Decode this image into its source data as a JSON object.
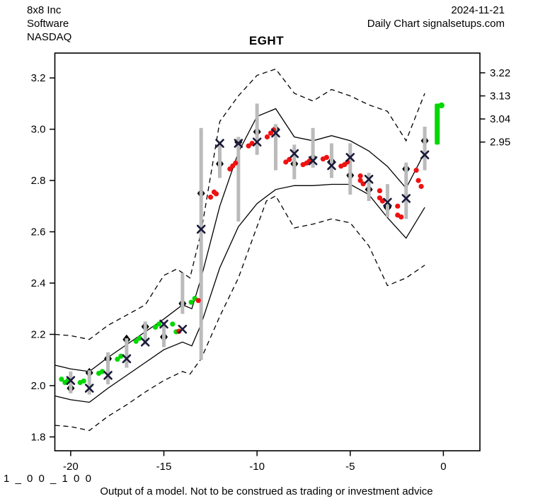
{
  "header": {
    "company": "8x8 Inc",
    "sector": "Software",
    "exchange": "NASDAQ",
    "date": "2024-11-21",
    "subtitle": "Daily Chart signalsetups.com"
  },
  "title": "EGHT",
  "footer": {
    "code": "1 _ 0 0 _ 1 0 0",
    "disclaimer": "Output of a model. Not to be construed as trading or investment advice"
  },
  "colors": {
    "green": "#00d800",
    "red": "#ee1111",
    "bar_gray": "#bbbbbb",
    "line_black": "#000000",
    "x_marker": "#1a1a3a"
  },
  "chart_data": {
    "type": "line",
    "title": "EGHT",
    "xlabel": "",
    "ylabel": "",
    "grid": false,
    "legend": "none",
    "xlim": [
      -20.85,
      1.96
    ],
    "ylim": [
      1.746,
      3.297
    ],
    "x_ticks": [
      -20,
      -15,
      -10,
      -5,
      0
    ],
    "y_ticks_left": [
      1.8,
      2.0,
      2.2,
      2.4,
      2.6,
      2.8,
      3.0,
      3.2
    ],
    "y_ticks_right": [
      3.22,
      3.13,
      3.04,
      2.95
    ],
    "bands": {
      "upper_dashed": [
        [
          -20.85,
          2.2
        ],
        [
          -20,
          2.195
        ],
        [
          -19,
          2.18
        ],
        [
          -18,
          2.235
        ],
        [
          -17,
          2.275
        ],
        [
          -16,
          2.315
        ],
        [
          -15,
          2.43
        ],
        [
          -14.3,
          2.455
        ],
        [
          -13.6,
          2.42
        ],
        [
          -13,
          2.6
        ],
        [
          -12,
          3.03
        ],
        [
          -11,
          3.13
        ],
        [
          -10,
          3.21
        ],
        [
          -9,
          3.235
        ],
        [
          -8,
          3.14
        ],
        [
          -7,
          3.11
        ],
        [
          -6,
          3.155
        ],
        [
          -5,
          3.13
        ],
        [
          -4,
          3.095
        ],
        [
          -3,
          3.07
        ],
        [
          -2,
          2.955
        ],
        [
          -1,
          3.14
        ]
      ],
      "upper_solid": [
        [
          -20.85,
          2.08
        ],
        [
          -20,
          2.065
        ],
        [
          -19,
          2.055
        ],
        [
          -18,
          2.11
        ],
        [
          -17,
          2.16
        ],
        [
          -16,
          2.21
        ],
        [
          -15,
          2.26
        ],
        [
          -14,
          2.315
        ],
        [
          -13.5,
          2.3
        ],
        [
          -13,
          2.42
        ],
        [
          -12,
          2.7
        ],
        [
          -11,
          2.91
        ],
        [
          -10,
          3.05
        ],
        [
          -9,
          3.08
        ],
        [
          -8,
          2.97
        ],
        [
          -7,
          2.955
        ],
        [
          -6,
          2.975
        ],
        [
          -5,
          2.955
        ],
        [
          -4,
          2.915
        ],
        [
          -3,
          2.855
        ],
        [
          -2,
          2.77
        ],
        [
          -1,
          2.91
        ]
      ],
      "lower_solid": [
        [
          -20.85,
          1.96
        ],
        [
          -20,
          1.945
        ],
        [
          -19,
          1.935
        ],
        [
          -18,
          1.99
        ],
        [
          -17,
          2.04
        ],
        [
          -16,
          2.09
        ],
        [
          -15,
          2.14
        ],
        [
          -14,
          2.17
        ],
        [
          -13.5,
          2.155
        ],
        [
          -13,
          2.24
        ],
        [
          -12,
          2.46
        ],
        [
          -11,
          2.62
        ],
        [
          -10,
          2.71
        ],
        [
          -9,
          2.765
        ],
        [
          -8,
          2.78
        ],
        [
          -7,
          2.78
        ],
        [
          -6,
          2.785
        ],
        [
          -5,
          2.785
        ],
        [
          -4,
          2.745
        ],
        [
          -3,
          2.655
        ],
        [
          -2,
          2.575
        ],
        [
          -1,
          2.695
        ]
      ],
      "lower_dashed": [
        [
          -20.85,
          1.845
        ],
        [
          -20,
          1.84
        ],
        [
          -19,
          1.825
        ],
        [
          -18,
          1.88
        ],
        [
          -17,
          1.925
        ],
        [
          -16,
          1.975
        ],
        [
          -15,
          2.02
        ],
        [
          -14,
          2.055
        ],
        [
          -13.6,
          2.045
        ],
        [
          -13,
          2.105
        ],
        [
          -12,
          2.27
        ],
        [
          -11,
          2.42
        ],
        [
          -10,
          2.62
        ],
        [
          -9.5,
          2.72
        ],
        [
          -9,
          2.74
        ],
        [
          -8,
          2.615
        ],
        [
          -7,
          2.63
        ],
        [
          -6,
          2.65
        ],
        [
          -5,
          2.635
        ],
        [
          -4,
          2.545
        ],
        [
          -3,
          2.39
        ],
        [
          -2,
          2.42
        ],
        [
          -1,
          2.47
        ]
      ]
    },
    "days": [
      {
        "day": -20,
        "bar": [
          1.97,
          2.055
        ],
        "x_marker": 2.02,
        "diamond": 1.99,
        "dots": [
          [
            -13,
            2.025,
            "g"
          ],
          [
            -8,
            2.012,
            "g"
          ],
          [
            -4,
            2.02,
            "g"
          ]
        ]
      },
      {
        "day": -19,
        "bar": [
          1.965,
          2.06
        ],
        "x_marker": 1.99,
        "diamond": 2.05,
        "dots": [
          [
            -13,
            2.012,
            "g"
          ],
          [
            -8,
            2.018,
            "g"
          ]
        ]
      },
      {
        "day": -18,
        "bar": [
          2.005,
          2.13
        ],
        "x_marker": 2.04,
        "diamond": 2.105,
        "dots": [
          [
            -13,
            2.048,
            "g"
          ],
          [
            -8,
            2.055,
            "g"
          ]
        ]
      },
      {
        "day": -17,
        "bar": [
          2.07,
          2.185
        ],
        "x_marker": 2.105,
        "diamond": 2.18,
        "dots": [
          [
            -13,
            2.103,
            "g"
          ],
          [
            -8,
            2.115,
            "g"
          ]
        ]
      },
      {
        "day": -16,
        "bar": [
          2.16,
          2.25
        ],
        "x_marker": 2.17,
        "diamond": 2.23,
        "dots": [
          [
            -13,
            2.173,
            "g"
          ],
          [
            -8,
            2.185,
            "g"
          ]
        ]
      },
      {
        "day": -15,
        "bar": [
          2.15,
          2.25
        ],
        "x_marker": 2.24,
        "diamond": 2.19,
        "dots": [
          [
            -12,
            2.228,
            "g"
          ],
          [
            -7,
            2.24,
            "g"
          ]
        ]
      },
      {
        "day": -14,
        "bar": [
          2.28,
          2.44
        ],
        "x_marker": 2.22,
        "diamond": 2.32,
        "dots": [
          [
            -14,
            2.24,
            "g"
          ],
          [
            -9,
            2.21,
            "g"
          ],
          [
            -5,
            2.212,
            "r"
          ]
        ]
      },
      {
        "day": -13,
        "bar": [
          2.1,
          3.005
        ],
        "x_marker": 2.61,
        "diamond": 2.75,
        "dots": [
          [
            -14,
            2.325,
            "g"
          ],
          [
            -9,
            2.34,
            "g"
          ],
          [
            -4,
            2.332,
            "r"
          ]
        ]
      },
      {
        "day": -12,
        "bar": [
          2.81,
          2.95
        ],
        "x_marker": 2.945,
        "diamond": 2.865,
        "dots": [
          [
            -13,
            2.735,
            "r"
          ],
          [
            -8,
            2.755,
            "r"
          ],
          [
            -5,
            2.748,
            "r"
          ]
        ]
      },
      {
        "day": -11,
        "bar": [
          2.64,
          2.97
        ],
        "x_marker": 2.945,
        "diamond": 2.95,
        "dots": [
          [
            -12,
            2.845,
            "r"
          ],
          [
            -8,
            2.857,
            "r"
          ],
          [
            -4,
            2.868,
            "r"
          ]
        ]
      },
      {
        "day": -10,
        "bar": [
          2.9,
          3.1
        ],
        "x_marker": 2.95,
        "diamond": 2.99,
        "dots": [
          [
            -12,
            2.935,
            "r"
          ],
          [
            -7,
            2.945,
            "r"
          ]
        ]
      },
      {
        "day": -9,
        "bar": [
          2.84,
          3.02
        ],
        "x_marker": 2.985,
        "diamond": 3.0,
        "dots": [
          [
            -12,
            2.97,
            "r"
          ],
          [
            -7,
            2.985,
            "r"
          ],
          [
            -3,
            2.997,
            "r"
          ]
        ]
      },
      {
        "day": -8,
        "bar": [
          2.805,
          2.94
        ],
        "x_marker": 2.905,
        "diamond": 2.865,
        "dots": [
          [
            -12,
            2.872,
            "r"
          ],
          [
            -7,
            2.882,
            "r"
          ]
        ]
      },
      {
        "day": -7,
        "bar": [
          2.85,
          3.005
        ],
        "x_marker": 2.877,
        "diamond": 2.888,
        "dots": [
          [
            -14,
            2.862,
            "r"
          ],
          [
            -9,
            2.868,
            "r"
          ],
          [
            -5,
            2.876,
            "r"
          ]
        ]
      },
      {
        "day": -6,
        "bar": [
          2.81,
          2.945
        ],
        "x_marker": 2.858,
        "diamond": 2.874,
        "dots": [
          [
            -12,
            2.884,
            "r"
          ],
          [
            -7,
            2.89,
            "r"
          ]
        ]
      },
      {
        "day": -5,
        "bar": [
          2.745,
          2.945
        ],
        "x_marker": 2.89,
        "diamond": 2.82,
        "dots": [
          [
            -13,
            2.856,
            "r"
          ],
          [
            -8,
            2.862,
            "r"
          ],
          [
            -4,
            2.872,
            "r"
          ]
        ]
      },
      {
        "day": -4,
        "bar": [
          2.72,
          2.83
        ],
        "x_marker": 2.805,
        "diamond": 2.765,
        "dots": [
          [
            -12,
            2.818,
            "r"
          ],
          [
            -12,
            2.8,
            "r"
          ],
          [
            -8,
            2.787,
            "r"
          ]
        ]
      },
      {
        "day": -3,
        "bar": [
          2.657,
          2.786
        ],
        "x_marker": 2.715,
        "diamond": 2.695,
        "dots": [
          [
            -11,
            2.76,
            "r"
          ],
          [
            -11,
            2.732,
            "r"
          ],
          [
            -7,
            2.72,
            "r"
          ]
        ]
      },
      {
        "day": -2,
        "bar": [
          2.65,
          2.87
        ],
        "x_marker": 2.73,
        "diamond": 2.845,
        "dots": [
          [
            -12,
            2.7,
            "r"
          ],
          [
            -12,
            2.665,
            "r"
          ],
          [
            -7,
            2.658,
            "r"
          ]
        ]
      },
      {
        "day": -1,
        "bar": [
          2.84,
          3.01
        ],
        "x_marker": 2.9,
        "diamond": 2.955,
        "dots": [
          [
            -12,
            2.84,
            "r"
          ],
          [
            -9,
            2.8,
            "r"
          ],
          [
            -5,
            2.777,
            "r"
          ]
        ]
      }
    ],
    "latest": {
      "day": -0.33,
      "bar": [
        2.94,
        3.1
      ],
      "dot_value": 3.093,
      "dot_dx": 6
    }
  }
}
